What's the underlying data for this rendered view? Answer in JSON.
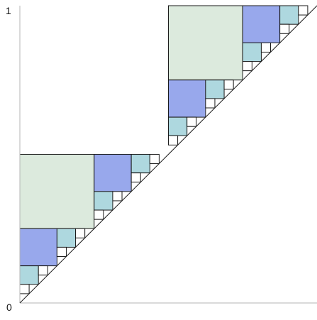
{
  "axis": {
    "top_label": "1",
    "bottom_label": "0"
  },
  "colors": {
    "large_square": "#dceadd",
    "medium_square": "#98a8ec",
    "small_square": "#aed8df",
    "empty_square": "#ffffff",
    "line": "#1a1a1a",
    "axis": "#b5b5b5"
  },
  "diagram": {
    "description_levels": [
      {
        "level": 1,
        "size_fraction": 0.25,
        "color_key": "large_square"
      },
      {
        "level": 2,
        "size_fraction": 0.125,
        "color_key": "medium_square"
      },
      {
        "level": 3,
        "size_fraction": 0.0625,
        "color_key": "small_square"
      },
      {
        "level": 4,
        "size_fraction": 0.03125,
        "color_key": "empty_square"
      }
    ]
  }
}
